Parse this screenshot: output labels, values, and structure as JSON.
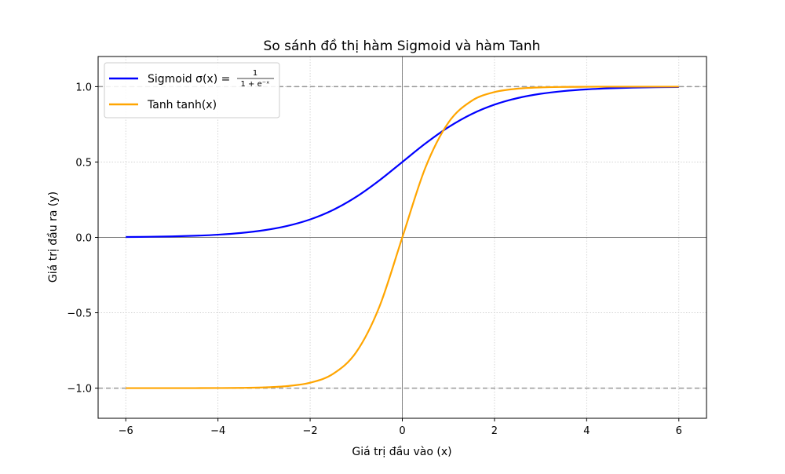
{
  "chart_data": {
    "type": "line",
    "title": "So sánh đồ thị hàm Sigmoid và hàm Tanh",
    "xlabel": "Giá trị đầu vào (x)",
    "ylabel": "Giá trị đầu ra (y)",
    "xlim": [
      -6.6,
      6.6
    ],
    "ylim": [
      -1.2,
      1.2
    ],
    "xticks": [
      -6,
      -4,
      -2,
      0,
      2,
      4,
      6
    ],
    "xtick_labels": [
      "−6",
      "−4",
      "−2",
      "0",
      "2",
      "4",
      "6"
    ],
    "yticks": [
      -1.0,
      -0.5,
      0.0,
      0.5,
      1.0
    ],
    "ytick_labels": [
      "−1.0",
      "−0.5",
      "0.0",
      "0.5",
      "1.0"
    ],
    "grid": true,
    "legend_position": "top-left",
    "reference_lines": {
      "horizontal_dashed": [
        1.0,
        -1.0
      ],
      "axis_lines": {
        "x": 0,
        "y": 0
      }
    },
    "x": [
      -6,
      -5.5,
      -5,
      -4.5,
      -4,
      -3.5,
      -3,
      -2.5,
      -2,
      -1.5,
      -1,
      -0.5,
      0,
      0.5,
      1,
      1.5,
      2,
      2.5,
      3,
      3.5,
      4,
      4.5,
      5,
      5.5,
      6
    ],
    "series": [
      {
        "name": "Sigmoid",
        "legend_formula": "σ(x) = 1 / (1 + e^−x)",
        "legend_label": "Sigmoid σ(x) =",
        "formula_num": "1",
        "formula_den": "1 + e⁻ˣ",
        "color": "#0000ff",
        "values": [
          0.0025,
          0.0041,
          0.0067,
          0.011,
          0.018,
          0.0293,
          0.0474,
          0.0759,
          0.1192,
          0.1824,
          0.2689,
          0.3775,
          0.5,
          0.6225,
          0.7311,
          0.8176,
          0.8808,
          0.9241,
          0.9526,
          0.9707,
          0.982,
          0.989,
          0.9933,
          0.9959,
          0.9975
        ]
      },
      {
        "name": "Tanh",
        "legend_label": "Tanh tanh(x)",
        "color": "#ffa500",
        "values": [
          -1.0,
          -1.0,
          -0.9999,
          -0.9998,
          -0.9993,
          -0.9982,
          -0.9951,
          -0.9866,
          -0.964,
          -0.9051,
          -0.7616,
          -0.4621,
          0,
          0.4621,
          0.7616,
          0.9051,
          0.964,
          0.9866,
          0.9951,
          0.9982,
          0.9993,
          0.9998,
          0.9999,
          1.0,
          1.0
        ]
      }
    ]
  }
}
